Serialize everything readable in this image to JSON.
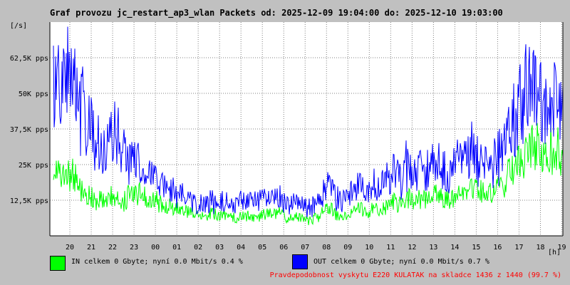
{
  "title": "Graf provozu jc_restart_ap3_wlan Packets od: 2025-12-09 19:04:00 do: 2025-12-10 19:03:00",
  "colors": {
    "background": "#c0c0c0",
    "plot_bg": "#ffffff",
    "in": "#00ff00",
    "out": "#0000ff",
    "grid": "#808080",
    "warning": "#ff0000"
  },
  "legend": {
    "in": {
      "label": "IN celkem 0 Gbyte; nyní   0.0 Mbit/s 0.4 %",
      "color": "#00ff00"
    },
    "out": {
      "label": "OUT celkem 0 Gbyte; nyní   0.0 Mbit/s 0.7 %",
      "color": "#0000ff"
    }
  },
  "status_line": "Pravdepodobnost vyskytu E220 KULATAK na skladce 1436 z 1440 (99.7 %)",
  "chart_data": {
    "type": "area",
    "title": "Graf provozu jc_restart_ap3_wlan Packets od: 2025-12-09 19:04:00 do: 2025-12-10 19:03:00",
    "ylabel": "[/s]",
    "xlabel": "[h]",
    "ylim": [
      0,
      75000
    ],
    "yticks": [
      12500,
      25000,
      37500,
      50000,
      62500
    ],
    "ytick_labels": [
      "12,5K pps",
      "25K pps",
      "37,5K pps",
      "50K pps",
      "62,5K pps"
    ],
    "xlim": [
      19.0667,
      43.05
    ],
    "xticks": [
      20,
      21,
      22,
      23,
      24,
      25,
      26,
      27,
      28,
      29,
      30,
      31,
      32,
      33,
      34,
      35,
      36,
      37,
      38,
      39,
      40,
      41,
      42,
      43
    ],
    "xtick_labels": [
      "20",
      "21",
      "22",
      "23",
      "00",
      "01",
      "02",
      "03",
      "04",
      "05",
      "06",
      "07",
      "08",
      "09",
      "10",
      "11",
      "12",
      "13",
      "14",
      "15",
      "16",
      "17",
      "18",
      "19"
    ],
    "grid": true,
    "x": [
      19.2,
      19.5,
      19.8,
      20.1,
      20.5,
      20.8,
      21.1,
      21.5,
      21.8,
      22.1,
      22.5,
      22.8,
      23.1,
      23.5,
      23.8,
      24.1,
      24.5,
      24.8,
      25.1,
      25.5,
      25.8,
      26.1,
      26.5,
      26.8,
      27.1,
      27.5,
      27.8,
      28.1,
      28.5,
      28.8,
      29.1,
      29.5,
      29.8,
      30.1,
      30.5,
      30.8,
      31.1,
      31.5,
      31.8,
      32.1,
      32.5,
      32.8,
      33.1,
      33.5,
      33.8,
      34.1,
      34.5,
      34.8,
      35.1,
      35.5,
      35.8,
      36.1,
      36.5,
      36.8,
      37.1,
      37.5,
      37.8,
      38.1,
      38.5,
      38.8,
      39.1,
      39.5,
      39.8,
      40.1,
      40.5,
      40.8,
      41.1,
      41.5,
      41.8,
      42.1,
      42.5,
      42.8,
      43.0
    ],
    "series": [
      {
        "name": "IN",
        "color": "#00ff00",
        "values": [
          22000,
          20000,
          18000,
          21000,
          15000,
          13000,
          12000,
          11000,
          12000,
          13000,
          11000,
          15000,
          14000,
          13000,
          12000,
          11000,
          10000,
          9000,
          9000,
          8000,
          8000,
          6000,
          7000,
          7000,
          7000,
          6000,
          6000,
          7000,
          6000,
          6000,
          7000,
          7000,
          8000,
          6000,
          6000,
          6000,
          5000,
          6000,
          8000,
          9000,
          7000,
          6000,
          8000,
          9000,
          8000,
          9000,
          8000,
          10000,
          11000,
          10000,
          13000,
          11000,
          12000,
          12000,
          14000,
          12000,
          11000,
          13000,
          14000,
          16000,
          14000,
          13000,
          14000,
          16000,
          20000,
          22000,
          26000,
          28000,
          30000,
          25000,
          28000,
          30000,
          25000
        ]
      },
      {
        "name": "OUT",
        "color": "#0000ff",
        "values": [
          45000,
          50000,
          55000,
          52000,
          42000,
          38000,
          35000,
          28000,
          30000,
          35000,
          30000,
          25000,
          24000,
          22000,
          20000,
          19000,
          15000,
          14000,
          14000,
          12000,
          12000,
          10000,
          11000,
          11000,
          11000,
          10000,
          10000,
          12000,
          11000,
          11000,
          12000,
          12000,
          13000,
          10000,
          11000,
          10000,
          9000,
          10000,
          14000,
          16000,
          13000,
          12000,
          15000,
          17000,
          15000,
          17000,
          15000,
          19000,
          21000,
          18000,
          24000,
          20000,
          22000,
          20000,
          24000,
          21000,
          20000,
          24000,
          25000,
          28000,
          24000,
          22000,
          24000,
          26000,
          32000,
          38000,
          45000,
          48000,
          50000,
          40000,
          45000,
          48000,
          42000
        ]
      }
    ]
  }
}
